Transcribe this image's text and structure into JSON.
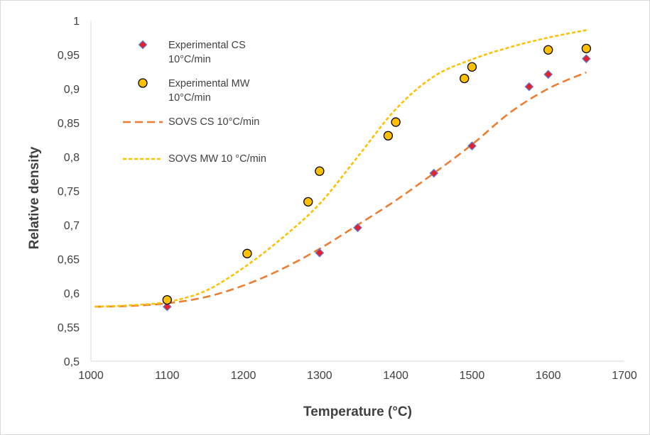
{
  "chart_data": {
    "type": "scatter",
    "title": "",
    "xlabel": "Temperature (°C)",
    "ylabel": "Relative density",
    "xlim": [
      1000,
      1700
    ],
    "ylim": [
      0.5,
      1.0
    ],
    "x_ticks": [
      1000,
      1100,
      1200,
      1300,
      1400,
      1500,
      1600,
      1700
    ],
    "x_tick_labels": [
      "1000",
      "1100",
      "1200",
      "1300",
      "1400",
      "1500",
      "1600",
      "1700"
    ],
    "y_ticks": [
      0.5,
      0.55,
      0.6,
      0.65,
      0.7,
      0.75,
      0.8,
      0.85,
      0.9,
      0.95,
      1.0
    ],
    "y_tick_labels": [
      "0,5",
      "0,55",
      "0,6",
      "0,65",
      "0,7",
      "0,75",
      "0,8",
      "0,85",
      "0,9",
      "0,95",
      "1"
    ],
    "grid": false,
    "legend_position": "top-left",
    "series": [
      {
        "name": "Experimental CS 10°C/min",
        "legend_lines": [
          "Experimental CS",
          "10°C/min"
        ],
        "kind": "marker",
        "marker": "diamond",
        "color": "#e8202a",
        "edge_color": "#5b7bd5",
        "x": [
          1100,
          1300,
          1350,
          1450,
          1500,
          1575,
          1600,
          1650
        ],
        "y": [
          0.58,
          0.659,
          0.696,
          0.776,
          0.816,
          0.903,
          0.921,
          0.944
        ]
      },
      {
        "name": "Experimental MW 10°C/min",
        "legend_lines": [
          "Experimental MW",
          "10°C/min"
        ],
        "kind": "marker",
        "marker": "circle",
        "color": "#ffc000",
        "edge_color": "#000000",
        "x": [
          1100,
          1205,
          1285,
          1300,
          1390,
          1400,
          1490,
          1500,
          1600,
          1650
        ],
        "y": [
          0.59,
          0.658,
          0.734,
          0.779,
          0.831,
          0.851,
          0.915,
          0.932,
          0.957,
          0.959
        ]
      },
      {
        "name": "SOVS CS 10°C/min",
        "legend_lines": [
          "SOVS CS 10°C/min"
        ],
        "kind": "line",
        "dash": "long",
        "color": "#ed7d31",
        "x": [
          1005,
          1050,
          1100,
          1150,
          1200,
          1250,
          1300,
          1350,
          1400,
          1450,
          1500,
          1550,
          1600,
          1650
        ],
        "y": [
          0.58,
          0.581,
          0.585,
          0.594,
          0.611,
          0.635,
          0.665,
          0.7,
          0.736,
          0.776,
          0.818,
          0.865,
          0.9,
          0.924
        ]
      },
      {
        "name": "SOVS MW 10 °C/min",
        "legend_lines": [
          "SOVS MW 10 °C/min"
        ],
        "kind": "line",
        "dash": "short",
        "color": "#ffc000",
        "x": [
          1005,
          1050,
          1100,
          1150,
          1200,
          1250,
          1300,
          1350,
          1400,
          1450,
          1500,
          1550,
          1600,
          1650
        ],
        "y": [
          0.58,
          0.582,
          0.587,
          0.603,
          0.637,
          0.68,
          0.731,
          0.8,
          0.87,
          0.918,
          0.943,
          0.961,
          0.975,
          0.986
        ]
      }
    ]
  }
}
